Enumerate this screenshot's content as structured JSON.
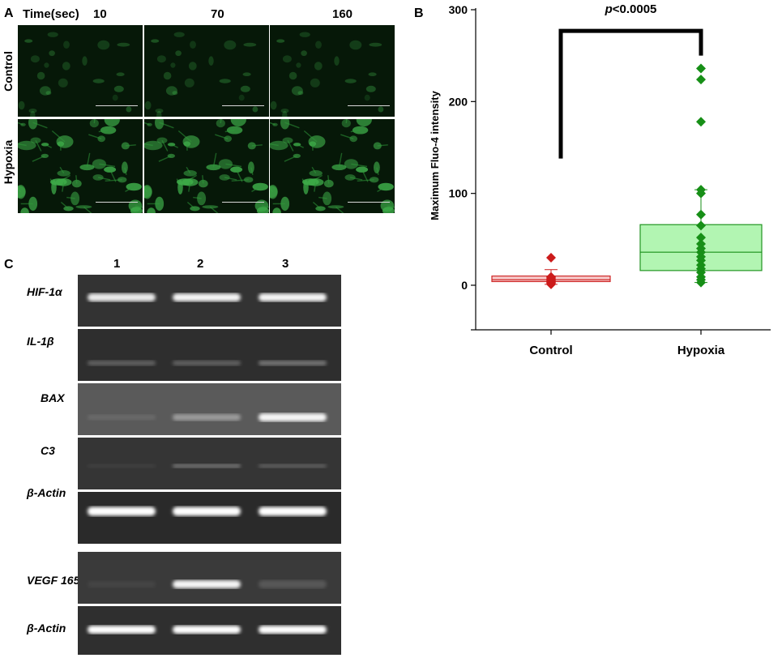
{
  "panel_a": {
    "letter": "A",
    "time_label": "Time(sec)",
    "times": [
      "10",
      "70",
      "160"
    ],
    "rows": [
      "Control",
      "Hypoxia"
    ]
  },
  "panel_b": {
    "letter": "B",
    "p_label": "p<0.0005"
  },
  "panel_c": {
    "letter": "C",
    "lanes": [
      "1",
      "2",
      "3"
    ],
    "genes": [
      "HIF-1α",
      "IL-1β",
      "BAX",
      "C3",
      "β-Actin",
      "VEGF 165",
      "β-Actin"
    ]
  },
  "chart_data": {
    "type": "box",
    "ylabel": "Maximum Fluo-4 intensity",
    "xlabel": "",
    "ylim": [
      -45,
      300
    ],
    "yticks": [
      0,
      100,
      200,
      300
    ],
    "categories": [
      "Control",
      "Hypoxia"
    ],
    "series": [
      {
        "name": "Control",
        "color": "#cc1b1b",
        "fill": "#f7c9c9",
        "box": {
          "q1": 4,
          "median": 6,
          "q3": 10,
          "whisker_low": 1,
          "whisker_high": 17
        },
        "points": [
          1,
          2,
          3,
          4,
          5,
          6,
          7,
          8,
          9,
          30
        ]
      },
      {
        "name": "Hypoxia",
        "color": "#178f17",
        "fill": "#aef5ae",
        "box": {
          "q1": 16,
          "median": 36,
          "q3": 66,
          "whisker_low": 3,
          "whisker_high": 104
        },
        "points": [
          3,
          6,
          9,
          14,
          18,
          22,
          27,
          31,
          36,
          40,
          45,
          52,
          65,
          77,
          100,
          104,
          178,
          224,
          236
        ]
      }
    ],
    "annotation": "p<0.0005"
  }
}
